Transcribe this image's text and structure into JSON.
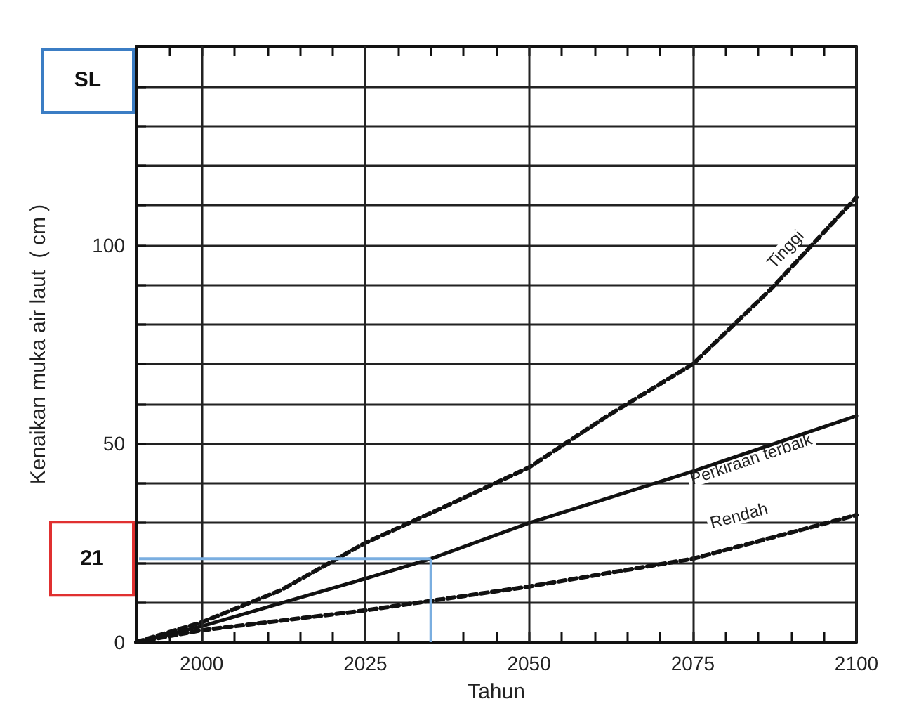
{
  "chart_data": {
    "type": "line",
    "xlabel": "Tahun",
    "ylabel": "Kenaikan muka air laut  ( cm )",
    "xlim": [
      1990,
      2100
    ],
    "xticks": [
      {
        "value": 1995,
        "label": null
      },
      {
        "value": 2000,
        "label": "2000"
      },
      {
        "value": 2005,
        "label": null
      },
      {
        "value": 2010,
        "label": null
      },
      {
        "value": 2015,
        "label": null
      },
      {
        "value": 2020,
        "label": null
      },
      {
        "value": 2025,
        "label": "2025"
      },
      {
        "value": 2030,
        "label": null
      },
      {
        "value": 2035,
        "label": null
      },
      {
        "value": 2040,
        "label": null
      },
      {
        "value": 2045,
        "label": null
      },
      {
        "value": 2050,
        "label": "2050"
      },
      {
        "value": 2055,
        "label": null
      },
      {
        "value": 2060,
        "label": null
      },
      {
        "value": 2065,
        "label": null
      },
      {
        "value": 2070,
        "label": null
      },
      {
        "value": 2075,
        "label": "2075"
      },
      {
        "value": 2080,
        "label": null
      },
      {
        "value": 2085,
        "label": null
      },
      {
        "value": 2090,
        "label": null
      },
      {
        "value": 2095,
        "label": null
      },
      {
        "value": 2100,
        "label": "2100"
      }
    ],
    "ylim": [
      0,
      150
    ],
    "yticks": [
      0,
      {
        "value": 10,
        "label": null
      },
      {
        "value": 20,
        "label": null
      },
      {
        "value": 30,
        "label": null
      },
      {
        "value": 40,
        "label": null
      },
      50,
      {
        "value": 60,
        "label": null
      },
      {
        "value": 70,
        "label": null
      },
      {
        "value": 80,
        "label": null
      },
      {
        "value": 90,
        "label": null
      },
      100,
      {
        "value": 110,
        "label": null
      },
      {
        "value": 120,
        "label": null
      },
      {
        "value": 130,
        "label": null
      },
      {
        "value": 140,
        "label": null
      },
      {
        "value": 150,
        "label": null
      }
    ],
    "grid": true,
    "marker": "none",
    "legend": false,
    "series": [
      {
        "name": "Tinggi",
        "color": "#111111",
        "line_style": "dashed",
        "x": [
          1990,
          2000,
          2012,
          2025,
          2037,
          2050,
          2062,
          2075,
          2087,
          2100
        ],
        "values": [
          0,
          5,
          13,
          25,
          34,
          44,
          57,
          70,
          89,
          112
        ]
      },
      {
        "name": "Perkiraan terbaik",
        "color": "#111111",
        "line_style": "solid",
        "x": [
          1990,
          2000,
          2025,
          2035,
          2050,
          2075,
          2100
        ],
        "values": [
          0,
          4,
          16,
          21,
          30,
          43,
          57
        ]
      },
      {
        "name": "Rendah",
        "color": "#111111",
        "line_style": "dashed",
        "x": [
          1990,
          2000,
          2025,
          2050,
          2075,
          2100
        ],
        "values": [
          0,
          3,
          8,
          14,
          21,
          32
        ]
      }
    ],
    "ref_lines": [
      {
        "axis": "y",
        "value": 21,
        "label": "21",
        "color": "#7aaee0"
      },
      {
        "axis": "x",
        "value": 2035,
        "color": "#7aaee0"
      }
    ],
    "annotations": [
      "SL"
    ]
  }
}
